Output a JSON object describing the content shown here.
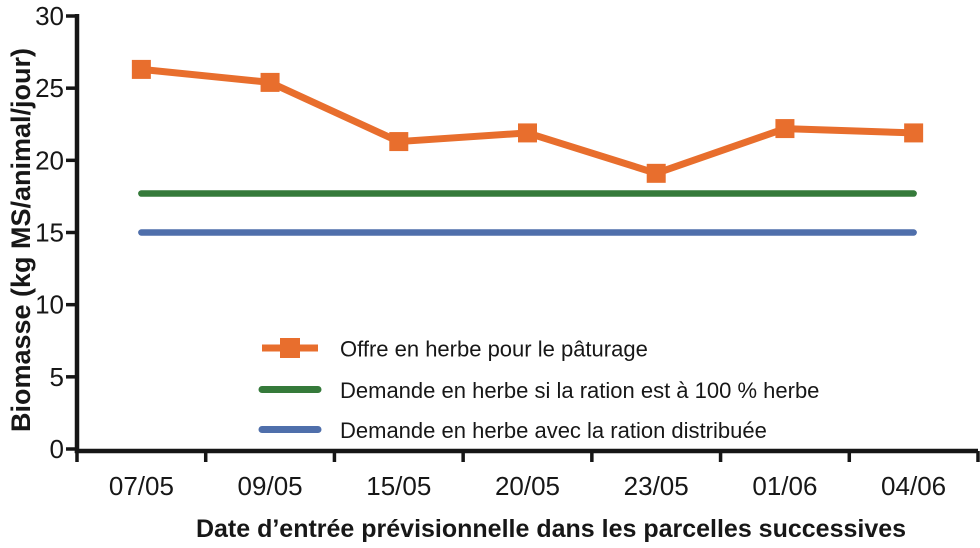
{
  "figure": {
    "background": "#FFFFFF",
    "axis_color": "#161616",
    "text_color": "#171717"
  },
  "chart_data": {
    "type": "line",
    "title": "",
    "grid": false,
    "legend_position": "inside-bottom-center",
    "x_axis": {
      "label": "Date d’entrée prévisionnelle dans les parcelles successives",
      "categories": [
        "07/05",
        "09/05",
        "15/05",
        "20/05",
        "23/05",
        "01/06",
        "04/06"
      ]
    },
    "y_axis": {
      "label": "Biomasse (kg MS/animal/jour)",
      "range": [
        0,
        30
      ],
      "ticks_top_to_bottom": [
        30,
        25,
        20,
        15,
        10,
        5,
        0
      ]
    },
    "series": [
      {
        "name": "Offre en herbe pour le pâturage",
        "color": "#E86E2D",
        "marker": "square",
        "values": [
          26.3,
          25.4,
          21.3,
          21.9,
          19.1,
          22.2,
          21.9
        ]
      },
      {
        "name": "Demande en herbe si la ration est à 100 % herbe",
        "color": "#357A3A",
        "marker": "none",
        "values": [
          17.7,
          17.7,
          17.7,
          17.7,
          17.7,
          17.7,
          17.7
        ]
      },
      {
        "name": "Demande en herbe avec la ration distribuée",
        "color": "#4F6FAB",
        "marker": "none",
        "values": [
          15,
          15,
          15,
          15,
          15,
          15,
          15
        ]
      }
    ]
  }
}
